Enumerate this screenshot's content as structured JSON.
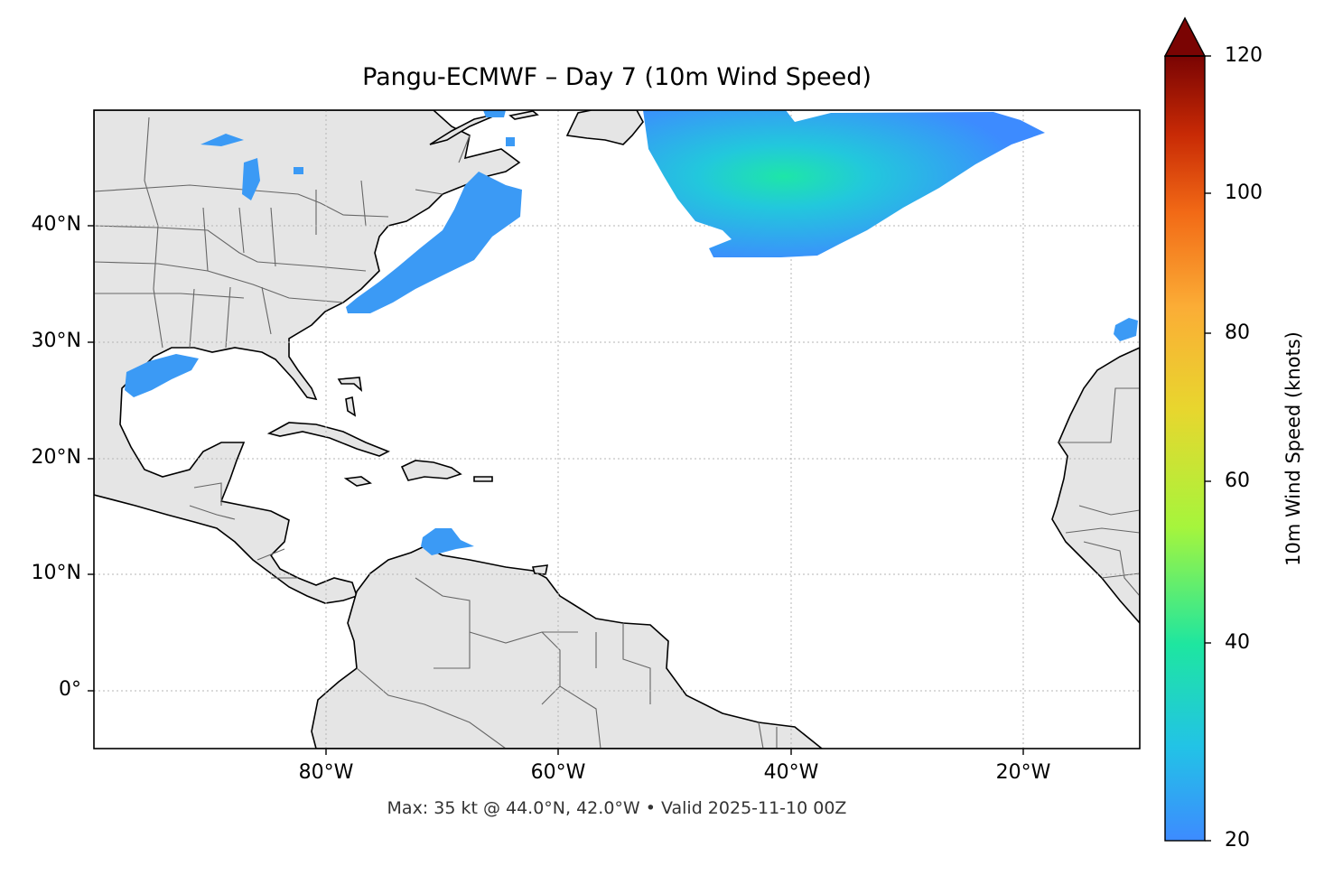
{
  "title": "Pangu-ECMWF – Day 7 (10m Wind Speed)",
  "footer": "Max: 35 kt @ 44.0°N, 42.0°W • Valid 2025-11-10 00Z",
  "axes": {
    "lat_ticks": [
      "40°N",
      "30°N",
      "20°N",
      "10°N",
      "0°"
    ],
    "lon_ticks": [
      "80°W",
      "60°W",
      "40°W",
      "20°W"
    ]
  },
  "colorbar": {
    "label": "10m Wind Speed (knots)",
    "ticks": [
      "120",
      "100",
      "80",
      "60",
      "40",
      "20"
    ],
    "range": [
      20,
      120
    ],
    "extend": "max",
    "colors": [
      "#3d8bff",
      "#22c3e6",
      "#1ee6a0",
      "#a6f53c",
      "#e8d62e",
      "#fbad36",
      "#f26a16",
      "#c82a05",
      "#7a0403"
    ]
  },
  "map": {
    "extent": {
      "lon": [
        -100,
        -10
      ],
      "lat": [
        -5,
        50
      ]
    },
    "land_color": "#e5e5e5",
    "max_point": {
      "lat": 44.0,
      "lon": -42.0,
      "speed_kt": 35
    }
  }
}
